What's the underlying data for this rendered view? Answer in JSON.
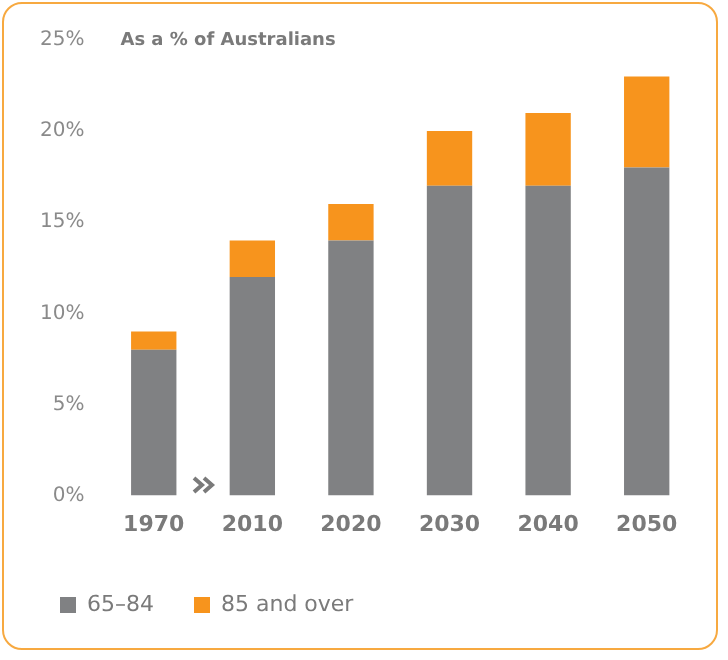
{
  "chart_data": {
    "type": "bar",
    "title": "As a % of Australians",
    "categories": [
      "1970",
      "2010",
      "2020",
      "2030",
      "2040",
      "2050"
    ],
    "stacked": true,
    "series": [
      {
        "name": "65–84",
        "color": "#808183",
        "values": [
          8,
          12,
          14,
          17,
          17,
          18
        ]
      },
      {
        "name": "85 and over",
        "color": "#f7941d",
        "values": [
          1,
          2,
          2,
          3,
          4,
          5
        ]
      }
    ],
    "ylim": [
      0,
      25
    ],
    "yticks": [
      {
        "value": 0,
        "label": "0%"
      },
      {
        "value": 5,
        "label": "5%"
      },
      {
        "value": 10,
        "label": "10%"
      },
      {
        "value": 15,
        "label": "15%"
      },
      {
        "value": 20,
        "label": "20%"
      },
      {
        "value": 25,
        "label": "25%"
      }
    ],
    "grid": false,
    "legend": "bottom"
  }
}
